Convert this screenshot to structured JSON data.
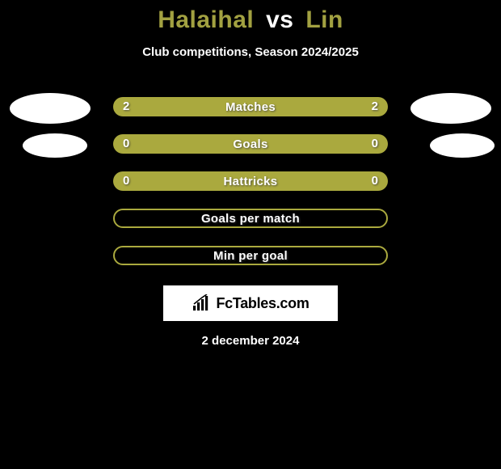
{
  "title": {
    "p1": "Halaihal",
    "vs": "vs",
    "p2": "Lin"
  },
  "subtitle": "Club competitions, Season 2024/2025",
  "colors": {
    "accent_fill": "#aaa93e",
    "accent_border": "#aaa93e",
    "bg": "#000000",
    "text": "#ffffff"
  },
  "rows": [
    {
      "label": "Matches",
      "left": "2",
      "right": "2",
      "filled": true,
      "avatar": "big"
    },
    {
      "label": "Goals",
      "left": "0",
      "right": "0",
      "filled": true,
      "avatar": "small"
    },
    {
      "label": "Hattricks",
      "left": "0",
      "right": "0",
      "filled": true,
      "avatar": null
    },
    {
      "label": "Goals per match",
      "left": "",
      "right": "",
      "filled": false,
      "avatar": null
    },
    {
      "label": "Min per goal",
      "left": "",
      "right": "",
      "filled": false,
      "avatar": null
    }
  ],
  "logo": {
    "text": "FcTables.com"
  },
  "date": "2 december 2024"
}
